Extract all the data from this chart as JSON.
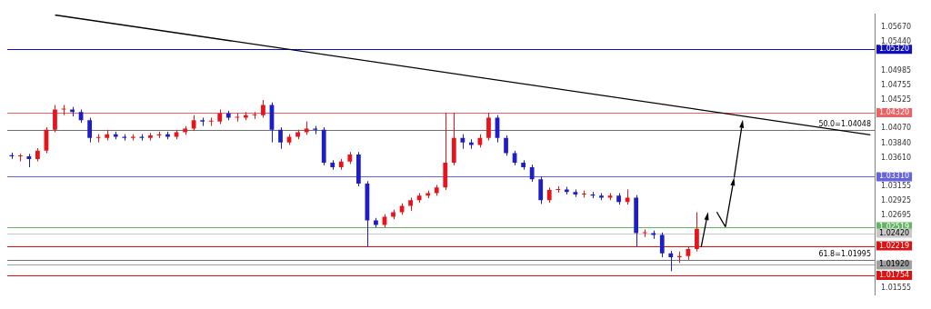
{
  "chart_data": {
    "type": "candlestick",
    "categories": [
      null,
      null,
      null,
      null,
      null,
      null,
      null,
      null,
      null,
      null,
      null,
      null,
      null,
      null,
      null,
      null,
      null,
      null,
      null,
      null,
      null,
      null,
      null,
      null,
      null,
      null,
      null,
      null,
      null,
      null,
      null,
      null,
      null,
      null,
      null,
      null,
      null,
      null,
      null,
      null,
      null,
      null,
      null,
      null,
      null,
      null,
      null,
      null,
      null,
      null,
      null,
      null,
      null,
      null,
      null,
      null,
      null,
      null,
      null,
      null,
      null,
      null,
      null,
      null,
      null,
      null,
      null,
      null,
      null,
      null,
      null,
      null,
      null,
      null,
      null,
      null,
      null,
      null,
      null,
      null,
      null,
      null,
      null,
      null,
      null,
      null,
      null,
      null,
      null,
      null,
      null,
      null,
      null,
      null,
      null,
      null,
      null,
      null,
      null,
      null
    ],
    "colors": [
      "#1e1ec8",
      "#e8141b",
      "#1e1ec8",
      "#e8141b",
      "#e8141b",
      "#e8141b",
      "#e8141b",
      "#1e1ec8",
      "#1e1ec8",
      "#1e1ec8",
      "#e8141b",
      "#e8141b",
      "#1e1ec8",
      "#1e1ec8",
      "#e8141b",
      "#1e1ec8",
      "#e8141b",
      "#e8141b",
      "#1e1ec8",
      "#e8141b",
      "#e8141b",
      "#e8141b",
      "#1e1ec8",
      "#e8141b",
      "#e8141b",
      "#1e1ec8",
      "#e8141b",
      "#e8141b",
      "#e8141b",
      "#e8141b",
      "#1e1ec8",
      "#1e1ec8",
      "#e8141b",
      "#e8141b",
      "#e8141b",
      "#1e1ec8",
      "#1e1ec8",
      "#1e1ec8",
      "#e8141b",
      "#e8141b",
      "#1e1ec8",
      "#1e1ec8",
      "#1e1ec8",
      "#e8141b",
      "#e8141b",
      "#e8141b",
      "#e8141b",
      "#e8141b",
      "#e8141b",
      "#e8141b",
      "#e8141b",
      "#e8141b",
      "#1e1ec8",
      "#1e1ec8",
      "#e8141b",
      "#e8141b",
      "#1e1ec8",
      "#1e1ec8",
      "#1e1ec8",
      "#1e1ec8",
      "#1e1ec8",
      "#1e1ec8",
      "#e8141b",
      "#e8141b",
      "#1e1ec8",
      "#1e1ec8",
      "#e8141b",
      "#1e1ec8",
      "#1e1ec8",
      "#e8141b",
      "#1e1ec8",
      "#e8141b",
      "#1e1ec8",
      "#e8141b",
      "#1e1ec8",
      "#1e1ec8",
      "#1e1ec8",
      "#e8141b",
      "#e8141b",
      "#e8141b",
      null,
      null,
      null,
      null,
      null,
      null,
      null,
      null,
      null,
      null,
      null,
      null,
      null,
      null,
      null,
      null,
      null,
      null,
      null,
      null
    ],
    "ohlc": [
      [
        1.0365,
        1.0369,
        1.0359,
        1.0363
      ],
      [
        1.0363,
        1.0367,
        1.0355,
        1.0363
      ],
      [
        1.0363,
        1.0367,
        1.0346,
        1.0359
      ],
      [
        1.0359,
        1.0376,
        1.0355,
        1.0372
      ],
      [
        1.0372,
        1.0409,
        1.0368,
        1.0405
      ],
      [
        1.0405,
        1.0444,
        1.0401,
        1.0437
      ],
      [
        1.0437,
        1.0444,
        1.0428,
        1.0437
      ],
      [
        1.0437,
        1.0441,
        1.0426,
        1.0433
      ],
      [
        1.0433,
        1.0437,
        1.0416,
        1.042
      ],
      [
        1.042,
        1.0424,
        1.0385,
        1.0392
      ],
      [
        1.0392,
        1.0398,
        1.0385,
        1.0392
      ],
      [
        1.0392,
        1.0405,
        1.0388,
        1.0398
      ],
      [
        1.0398,
        1.0402,
        1.039,
        1.0394
      ],
      [
        1.0394,
        1.0398,
        1.0388,
        1.0392
      ],
      [
        1.0392,
        1.0398,
        1.0388,
        1.0394
      ],
      [
        1.0394,
        1.0398,
        1.0388,
        1.0392
      ],
      [
        1.0392,
        1.04,
        1.0388,
        1.0396
      ],
      [
        1.0396,
        1.0402,
        1.0392,
        1.0398
      ],
      [
        1.0398,
        1.0402,
        1.039,
        1.0394
      ],
      [
        1.0394,
        1.0405,
        1.039,
        1.0401
      ],
      [
        1.0401,
        1.0411,
        1.0397,
        1.0407
      ],
      [
        1.0407,
        1.0428,
        1.0403,
        1.042
      ],
      [
        1.042,
        1.0424,
        1.0411,
        1.0418
      ],
      [
        1.0418,
        1.0424,
        1.0411,
        1.0418
      ],
      [
        1.0418,
        1.0437,
        1.0414,
        1.0431
      ],
      [
        1.0431,
        1.0435,
        1.042,
        1.0424
      ],
      [
        1.0424,
        1.0431,
        1.0418,
        1.0424
      ],
      [
        1.0424,
        1.0433,
        1.042,
        1.0428
      ],
      [
        1.0428,
        1.0433,
        1.0422,
        1.0428
      ],
      [
        1.0428,
        1.0452,
        1.0424,
        1.0444
      ],
      [
        1.0444,
        1.0448,
        1.0385,
        1.0405
      ],
      [
        1.0405,
        1.0409,
        1.0375,
        1.0385
      ],
      [
        1.0385,
        1.0398,
        1.0381,
        1.0394
      ],
      [
        1.0394,
        1.0405,
        1.039,
        1.0401
      ],
      [
        1.0401,
        1.0418,
        1.0397,
        1.0407
      ],
      [
        1.0407,
        1.0411,
        1.0398,
        1.0405
      ],
      [
        1.0405,
        1.0409,
        1.0349,
        1.0353
      ],
      [
        1.0353,
        1.0357,
        1.0342,
        1.0346
      ],
      [
        1.0346,
        1.0359,
        1.0342,
        1.0355
      ],
      [
        1.0355,
        1.037,
        1.0351,
        1.0366
      ],
      [
        1.0366,
        1.037,
        1.0316,
        1.032
      ],
      [
        1.032,
        1.0324,
        1.0221,
        1.0262
      ],
      [
        1.0262,
        1.0266,
        1.0251,
        1.0255
      ],
      [
        1.0255,
        1.0272,
        1.0251,
        1.0268
      ],
      [
        1.0268,
        1.0279,
        1.0264,
        1.0275
      ],
      [
        1.0275,
        1.0289,
        1.0271,
        1.0285
      ],
      [
        1.0285,
        1.0298,
        1.0277,
        1.0294
      ],
      [
        1.0294,
        1.0305,
        1.029,
        1.0301
      ],
      [
        1.0301,
        1.0309,
        1.0297,
        1.0305
      ],
      [
        1.0305,
        1.0318,
        1.0301,
        1.0314
      ],
      [
        1.0314,
        1.0432,
        1.031,
        1.0353
      ],
      [
        1.0353,
        1.0432,
        1.0349,
        1.0392
      ],
      [
        1.0392,
        1.0398,
        1.0375,
        1.0385
      ],
      [
        1.0385,
        1.039,
        1.0375,
        1.0381
      ],
      [
        1.0381,
        1.0398,
        1.0377,
        1.0392
      ],
      [
        1.0392,
        1.0432,
        1.0388,
        1.0424
      ],
      [
        1.0424,
        1.0428,
        1.0385,
        1.0392
      ],
      [
        1.0392,
        1.0396,
        1.0364,
        1.0368
      ],
      [
        1.0368,
        1.0372,
        1.0349,
        1.0353
      ],
      [
        1.0353,
        1.0357,
        1.0342,
        1.0346
      ],
      [
        1.0346,
        1.035,
        1.0323,
        1.0327
      ],
      [
        1.0327,
        1.0331,
        1.0288,
        1.0294
      ],
      [
        1.0294,
        1.0314,
        1.029,
        1.031
      ],
      [
        1.031,
        1.0316,
        1.0306,
        1.0311
      ],
      [
        1.0311,
        1.0315,
        1.0303,
        1.0307
      ],
      [
        1.0307,
        1.0311,
        1.0299,
        1.0303
      ],
      [
        1.0303,
        1.0309,
        1.0298,
        1.0303
      ],
      [
        1.0303,
        1.0307,
        1.0297,
        1.0301
      ],
      [
        1.0301,
        1.0305,
        1.0294,
        1.0298
      ],
      [
        1.0298,
        1.0305,
        1.0294,
        1.0301
      ],
      [
        1.0301,
        1.0305,
        1.0287,
        1.0291
      ],
      [
        1.0291,
        1.0311,
        1.0287,
        1.0298
      ],
      [
        1.0298,
        1.0302,
        1.0221,
        1.0242
      ],
      [
        1.0242,
        1.0248,
        1.0236,
        1.0242
      ],
      [
        1.0242,
        1.0246,
        1.0233,
        1.0239
      ],
      [
        1.0239,
        1.0243,
        1.0204,
        1.021
      ],
      [
        1.021,
        1.0214,
        1.0182,
        1.0204
      ],
      [
        1.0204,
        1.0213,
        1.0195,
        1.0206
      ],
      [
        1.0206,
        1.0221,
        1.02,
        1.0217
      ],
      [
        1.0217,
        1.0275,
        1.0213,
        1.0249
      ],
      null,
      null,
      null,
      null,
      null,
      null,
      null,
      null,
      null,
      null,
      null,
      null,
      null,
      null,
      null,
      null,
      null,
      null,
      null,
      null
    ],
    "series": [
      {
        "type": "line",
        "color": "#000000",
        "values": [
          null,
          null,
          null,
          null,
          null,
          1.0586,
          null,
          null,
          null,
          null,
          null,
          null,
          null,
          null,
          null,
          null,
          null,
          null,
          null,
          null,
          null,
          null,
          null,
          null,
          null,
          null,
          null,
          null,
          null,
          null,
          null,
          null,
          null,
          null,
          null,
          null,
          null,
          null,
          null,
          null,
          null,
          null,
          null,
          null,
          null,
          null,
          null,
          null,
          null,
          null,
          null,
          null,
          null,
          null,
          null,
          null,
          null,
          null,
          null,
          null,
          null,
          null,
          null,
          null,
          null,
          null,
          null,
          null,
          null,
          null,
          null,
          null,
          null,
          null,
          null,
          null,
          null,
          null,
          null,
          null,
          null,
          null,
          null,
          null,
          null,
          null,
          null,
          null,
          null,
          null,
          null,
          null,
          null,
          null,
          null,
          null,
          null,
          null,
          null,
          1.0397
        ]
      }
    ],
    "ylim": [
      1.0145,
      1.0587
    ],
    "yticks": [
      {
        "value": 1.0567,
        "label": "1.05670"
      },
      {
        "value": 1.0544,
        "label": "1.05440"
      },
      1.04985,
      1.04755,
      1.04525,
      {
        "value": 1.0407,
        "label": "1.04070"
      },
      {
        "value": 1.0384,
        "label": "1.03840"
      },
      {
        "value": 1.0361,
        "label": "1.03610"
      },
      1.03155,
      1.02925,
      1.02695,
      1.01555
    ],
    "ref_lines": [
      {
        "axis": "y",
        "value": 1.0532,
        "label": "1.05320",
        "color": "#1010c0"
      },
      {
        "axis": "y",
        "value": 1.0432,
        "label": "1.04320",
        "color": "#f06060"
      },
      {
        "axis": "y",
        "value": 1.04048,
        "label": "50.0=1.04048",
        "color": "#707070"
      },
      {
        "axis": "y",
        "value": 1.0331,
        "label": "1.03310",
        "color": "#6464dc"
      },
      {
        "axis": "y",
        "value": 1.02519,
        "label": "1.02519",
        "color": "#64b464"
      },
      {
        "axis": "y",
        "value": 1.0242,
        "label": "1.02420",
        "color": "#c8c8c8"
      },
      {
        "axis": "y",
        "value": 1.02219,
        "label": "1.02219",
        "color": "#e01010"
      },
      {
        "axis": "y",
        "value": 1.01995,
        "label": "61.8=1.01995",
        "color": "#707070"
      },
      {
        "axis": "y",
        "value": 1.0192,
        "label": "1.01920",
        "color": "#a0a0a0"
      },
      {
        "axis": "y",
        "value": 1.01754,
        "label": "1.01754",
        "color": "#e01010"
      }
    ],
    "grid": false,
    "legend": false,
    "tick_labels": "y"
  }
}
